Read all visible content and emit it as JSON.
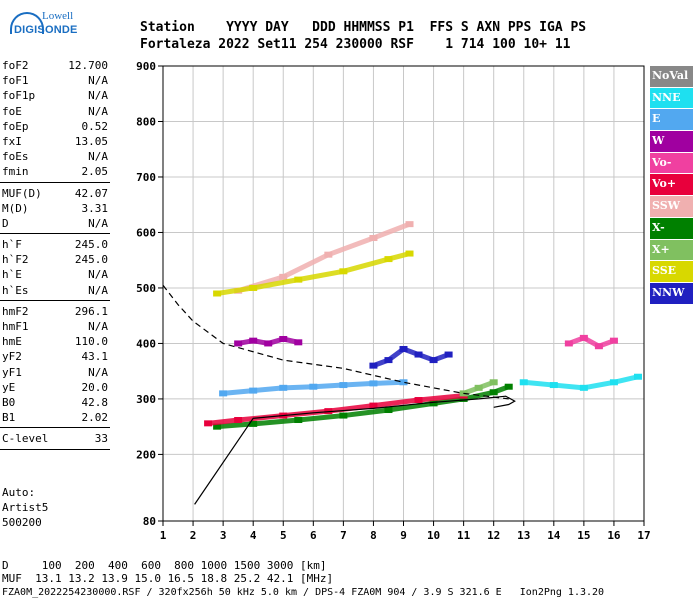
{
  "logo": {
    "line1": "Lowell",
    "line2": "DIGISONDE"
  },
  "header": {
    "line1": "Station    YYYY DAY   DDD HHMMSS P1  FFS S AXN PPS IGA PS",
    "line2": "Fortaleza 2022 Set11 254 230000 RSF    1 714 100 10+ 11"
  },
  "params": [
    {
      "k": "foF2",
      "v": "12.700"
    },
    {
      "k": "foF1",
      "v": "N/A"
    },
    {
      "k": "foF1p",
      "v": "N/A"
    },
    {
      "k": "foE",
      "v": "N/A"
    },
    {
      "k": "foEp",
      "v": "0.52"
    },
    {
      "k": "fxI",
      "v": "13.05"
    },
    {
      "k": "foEs",
      "v": "N/A"
    },
    {
      "k": "fmin",
      "v": "2.05"
    },
    {
      "sep": true
    },
    {
      "k": "MUF(D)",
      "v": "42.07"
    },
    {
      "k": "M(D)",
      "v": "3.31"
    },
    {
      "k": "D",
      "v": "N/A"
    },
    {
      "sep": true
    },
    {
      "k": "h`F",
      "v": "245.0"
    },
    {
      "k": "h`F2",
      "v": "245.0"
    },
    {
      "k": "h`E",
      "v": "N/A"
    },
    {
      "k": "h`Es",
      "v": "N/A"
    },
    {
      "sep": true
    },
    {
      "k": "hmF2",
      "v": "296.1"
    },
    {
      "k": "hmF1",
      "v": "N/A"
    },
    {
      "k": "hmE",
      "v": "110.0"
    },
    {
      "k": "yF2",
      "v": "43.1"
    },
    {
      "k": "yF1",
      "v": "N/A"
    },
    {
      "k": "yE",
      "v": "20.0"
    },
    {
      "k": "B0",
      "v": "42.8"
    },
    {
      "k": "B1",
      "v": "2.02"
    },
    {
      "sep": true
    },
    {
      "k": "C-level",
      "v": "33"
    },
    {
      "sep": true
    }
  ],
  "auto": {
    "line1": "Auto:",
    "line2": "Artist5",
    "line3": "500200"
  },
  "legend": [
    {
      "label": "NoVal",
      "color": "#888888"
    },
    {
      "label": "NNE",
      "color": "#1ee0f0"
    },
    {
      "label": "E",
      "color": "#52a8f0"
    },
    {
      "label": "W",
      "color": "#a000a0"
    },
    {
      "label": "Vo-",
      "color": "#f040a0"
    },
    {
      "label": "Vo+",
      "color": "#e8003c"
    },
    {
      "label": "SSW",
      "color": "#f0b0b0"
    },
    {
      "label": "X-",
      "color": "#008000"
    },
    {
      "label": "X+",
      "color": "#80c060"
    },
    {
      "label": "SSE",
      "color": "#d8d800"
    },
    {
      "label": "NNW",
      "color": "#2020c0"
    }
  ],
  "bottom": {
    "line1": "D     100  200  400  600  800 1000 1500 3000 [km]",
    "line2": "MUF  13.1 13.2 13.9 15.0 16.5 18.8 25.2 42.1 [MHz]",
    "line3": "FZA0M_2022254230000.RSF / 320fx256h 50 kHz 5.0 km / DPS-4 FZA0M 904 / 3.9 S 321.6 E   Ion2Png 1.3.20"
  },
  "chart_data": {
    "type": "scatter",
    "title": "",
    "xlabel": "",
    "ylabel": "",
    "xlim": [
      1,
      17
    ],
    "ylim": [
      80,
      900
    ],
    "xticks": [
      1,
      2,
      3,
      4,
      5,
      6,
      7,
      8,
      9,
      10,
      11,
      12,
      13,
      14,
      15,
      16,
      17
    ],
    "yticks": [
      80,
      200,
      300,
      400,
      500,
      600,
      700,
      800,
      900
    ],
    "grid": true,
    "legend_placement": "right",
    "series": [
      {
        "name": "X-",
        "color": "#008000",
        "x": [
          2.8,
          4.0,
          5.5,
          7.0,
          8.5,
          10.0,
          11.0,
          12.0,
          12.5
        ],
        "y": [
          250,
          255,
          262,
          270,
          280,
          292,
          300,
          312,
          322
        ]
      },
      {
        "name": "Vo+",
        "color": "#e8003c",
        "x": [
          2.5,
          3.5,
          5.0,
          6.5,
          8.0,
          9.5,
          11.0
        ],
        "y": [
          256,
          262,
          270,
          278,
          288,
          298,
          306
        ]
      },
      {
        "name": "E",
        "color": "#52a8f0",
        "x": [
          3.0,
          4.0,
          5.0,
          6.0,
          7.0,
          8.0,
          9.0
        ],
        "y": [
          310,
          315,
          320,
          322,
          325,
          328,
          330
        ]
      },
      {
        "name": "W",
        "color": "#a000a0",
        "x": [
          3.5,
          4.0,
          4.5,
          5.0,
          5.5
        ],
        "y": [
          400,
          405,
          400,
          408,
          402
        ]
      },
      {
        "name": "NNW",
        "color": "#2020c0",
        "x": [
          8.0,
          8.5,
          9.0,
          9.5,
          10.0,
          10.5
        ],
        "y": [
          360,
          370,
          390,
          380,
          370,
          380
        ]
      },
      {
        "name": "NNE",
        "color": "#1ee0f0",
        "x": [
          13.0,
          14.0,
          15.0,
          16.0,
          16.8
        ],
        "y": [
          330,
          325,
          320,
          330,
          340
        ]
      },
      {
        "name": "SSW",
        "color": "#f0b0b0",
        "x": [
          3.5,
          5.0,
          6.5,
          8.0,
          9.2
        ],
        "y": [
          495,
          520,
          560,
          590,
          615
        ]
      },
      {
        "name": "SSE",
        "color": "#d8d800",
        "x": [
          2.8,
          4.0,
          5.5,
          7.0,
          8.5,
          9.2
        ],
        "y": [
          490,
          500,
          515,
          530,
          552,
          562
        ]
      },
      {
        "name": "Vo-",
        "color": "#f040a0",
        "x": [
          14.5,
          15.0,
          15.5,
          16.0
        ],
        "y": [
          400,
          410,
          395,
          405
        ]
      },
      {
        "name": "X+",
        "color": "#80c060",
        "x": [
          11.0,
          11.5,
          12.0
        ],
        "y": [
          310,
          320,
          330
        ]
      }
    ],
    "profile_solid": {
      "x": [
        2.05,
        4.0,
        6.0,
        8.0,
        10.0,
        11.5,
        12.4,
        12.7,
        12.5,
        12.0
      ],
      "y": [
        110,
        265,
        275,
        283,
        294,
        300,
        305,
        296.1,
        290,
        285
      ]
    },
    "profile_dashed": {
      "x": [
        1.0,
        1.5,
        2.0,
        3.0,
        5.0,
        7.0,
        9.0,
        11.0,
        12.5
      ],
      "y": [
        505,
        470,
        440,
        400,
        370,
        355,
        330,
        310,
        300
      ]
    }
  }
}
